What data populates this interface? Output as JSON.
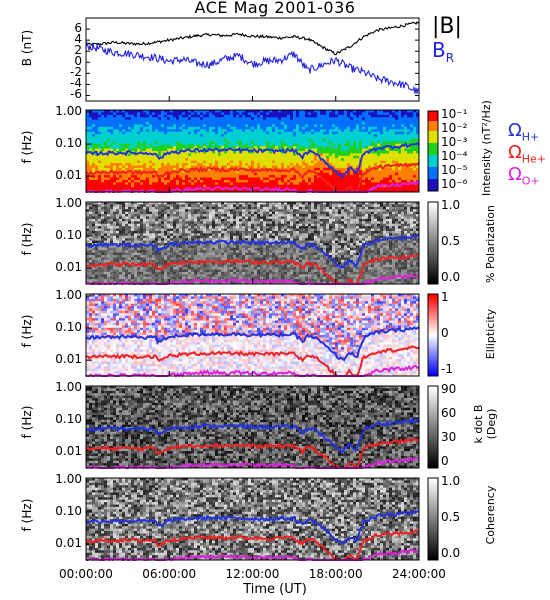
{
  "title": "ACE Mag 2001-036",
  "legend": {
    "b_label": "|B|",
    "br_main": "B",
    "br_sub": "R",
    "b_color": "#000000",
    "br_color": "#2222dd"
  },
  "gyro_labels": [
    {
      "main": "Ω",
      "sub": "H+",
      "color": "#2233dd"
    },
    {
      "main": "Ω",
      "sub": "He+",
      "color": "#ee2222"
    },
    {
      "main": "Ω",
      "sub": "O+",
      "color": "#dd22dd"
    }
  ],
  "xaxis": {
    "label": "Time (UT)",
    "ticks": [
      "00:00:00",
      "06:00:00",
      "12:00:00",
      "18:00:00",
      "24:00:00"
    ]
  },
  "chart_data": [
    {
      "type": "line",
      "panel": "field",
      "ylabel_main": "B",
      "ylabel_unit": "(nT)",
      "ylim": [
        -7,
        8
      ],
      "yticks": [
        "6",
        "4",
        "2",
        "0",
        "-2",
        "-4",
        "-6"
      ],
      "xlim": [
        0,
        24
      ],
      "series": [
        {
          "name": "|B|",
          "color": "#000000",
          "x": [
            0,
            1,
            2,
            3,
            4,
            5,
            6,
            7,
            8,
            9,
            10,
            11,
            12,
            13,
            14,
            15,
            16,
            17,
            18,
            19,
            20,
            21,
            22,
            23,
            24
          ],
          "values": [
            3.2,
            3.3,
            3.6,
            3.4,
            3.3,
            3.6,
            4.0,
            4.4,
            4.8,
            5.0,
            4.8,
            5.1,
            4.7,
            4.6,
            4.4,
            4.6,
            4.2,
            2.8,
            1.5,
            2.8,
            4.6,
            5.8,
            6.2,
            6.7,
            7.2
          ]
        },
        {
          "name": "B_R",
          "color": "#2222dd",
          "x": [
            0,
            1,
            2,
            3,
            4,
            5,
            6,
            7,
            8,
            9,
            10,
            11,
            12,
            13,
            14,
            15,
            16,
            17,
            18,
            19,
            20,
            21,
            22,
            23,
            24
          ],
          "values": [
            3.0,
            2.4,
            1.8,
            1.6,
            1.2,
            0.8,
            0.2,
            0.5,
            -0.2,
            -0.4,
            0.6,
            1.2,
            -0.3,
            0.2,
            0.4,
            1.5,
            -1.5,
            -0.5,
            0.4,
            -1.0,
            -1.8,
            -3.0,
            -3.5,
            -4.2,
            -5.5
          ]
        }
      ]
    },
    {
      "type": "heatmap",
      "panel": "intensity",
      "ylabel_main": "f",
      "ylabel_unit": "(Hz)",
      "yticks": [
        "1.00",
        "0.10",
        "0.01"
      ],
      "colorbar_label": "Intensity (nT²/Hz)",
      "colorbar_ticks": [
        "10⁻¹",
        "10⁻²",
        "10⁻³",
        "10⁻⁴",
        "10⁻⁵",
        "10⁻⁶"
      ],
      "colormap": "rainbow"
    },
    {
      "type": "heatmap",
      "panel": "polarization",
      "ylabel_main": "f",
      "ylabel_unit": "(Hz)",
      "yticks": [
        "1.00",
        "0.10",
        "0.01"
      ],
      "colorbar_label": "% Polarization",
      "colorbar_ticks": [
        "1.0",
        "0.5",
        "0.0"
      ],
      "colormap": "gray"
    },
    {
      "type": "heatmap",
      "panel": "ellipticity",
      "ylabel_main": "f",
      "ylabel_unit": "(Hz)",
      "yticks": [
        "1.00",
        "0.10",
        "0.01"
      ],
      "colorbar_label": "Ellipticity",
      "colorbar_ticks": [
        "1",
        "0",
        "-1"
      ],
      "colormap": "blue-white-red"
    },
    {
      "type": "heatmap",
      "panel": "kdotb",
      "ylabel_main": "f",
      "ylabel_unit": "(Hz)",
      "yticks": [
        "1.00",
        "0.10",
        "0.01"
      ],
      "colorbar_label": "k dot B",
      "colorbar_unit": "(Deg)",
      "colorbar_ticks": [
        "90",
        "60",
        "30",
        "0"
      ],
      "colormap": "gray"
    },
    {
      "type": "heatmap",
      "panel": "coherency",
      "ylabel_main": "f",
      "ylabel_unit": "(Hz)",
      "yticks": [
        "1.00",
        "0.10",
        "0.01"
      ],
      "colorbar_label": "Coherency",
      "colorbar_ticks": [
        "1.0",
        "0.5",
        "0.0"
      ],
      "colormap": "gray"
    }
  ],
  "gyrofrequency_curves": {
    "x": [
      0,
      1,
      2,
      3,
      4,
      5,
      5.2,
      6,
      7,
      8,
      9,
      10,
      11,
      12,
      13,
      14,
      15,
      15.6,
      16,
      16.5,
      17,
      17.5,
      18,
      18.5,
      19,
      19.5,
      20,
      21,
      22,
      23,
      24
    ],
    "H+": [
      0.05,
      0.052,
      0.053,
      0.053,
      0.052,
      0.053,
      0.035,
      0.055,
      0.06,
      0.064,
      0.066,
      0.064,
      0.065,
      0.062,
      0.061,
      0.062,
      0.063,
      0.04,
      0.058,
      0.05,
      0.035,
      0.022,
      0.014,
      0.01,
      0.018,
      0.012,
      0.05,
      0.075,
      0.082,
      0.09,
      0.1
    ],
    "He+": [
      0.0125,
      0.013,
      0.0132,
      0.0133,
      0.013,
      0.0133,
      0.009,
      0.0138,
      0.015,
      0.016,
      0.0165,
      0.016,
      0.0163,
      0.0155,
      0.0153,
      0.0155,
      0.0158,
      0.01,
      0.0145,
      0.0125,
      0.0088,
      0.0055,
      0.0035,
      0.0026,
      0.0045,
      0.003,
      0.0125,
      0.019,
      0.0205,
      0.0225,
      0.025
    ],
    "O+": [
      0.0031,
      0.0032,
      0.0033,
      0.0033,
      0.0033,
      0.0033,
      0.0023,
      0.0034,
      0.0037,
      0.004,
      0.0041,
      0.004,
      0.0041,
      0.0039,
      0.0038,
      0.0039,
      0.0039,
      0.0025,
      0.0036,
      0.0031,
      0.0022,
      0.0014,
      0.0009,
      0.0007,
      0.0011,
      0.0008,
      0.0031,
      0.0047,
      0.0051,
      0.0056,
      0.0062
    ]
  }
}
